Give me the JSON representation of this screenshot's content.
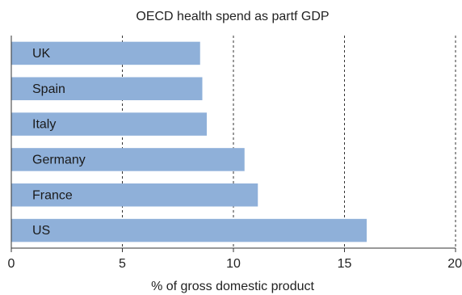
{
  "chart_data": {
    "type": "bar",
    "orientation": "horizontal",
    "title": "OECD health spend as partf GDP",
    "xlabel": "% of gross domestic product",
    "ylabel": "",
    "categories": [
      "UK",
      "Spain",
      "Italy",
      "Germany",
      "France",
      "US"
    ],
    "values": [
      8.5,
      8.6,
      8.8,
      10.5,
      11.1,
      16.0
    ],
    "xlim": [
      0,
      20
    ],
    "xticks": [
      "0",
      "5",
      "10",
      "15",
      "20"
    ],
    "xtick_values": [
      0,
      5,
      10,
      15,
      20
    ],
    "grid": "dashed vertical",
    "legend": "none",
    "bar_color": "#8fb0d9",
    "grid_color": "#333333",
    "axis_color": "#333333"
  }
}
